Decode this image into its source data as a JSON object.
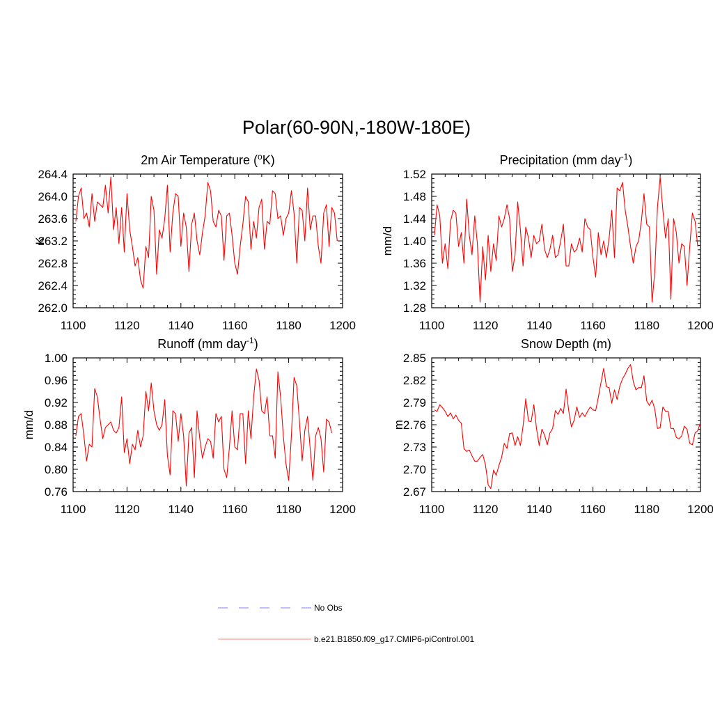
{
  "figure": {
    "title": "Polar(60-90N,-180W-180E)"
  },
  "legend": {
    "entries": [
      {
        "label": "No Obs",
        "color": "#a9a9ff",
        "style": "dashed"
      },
      {
        "label": "b.e21.B1850.f09_g17.CMIP6-piControl.001",
        "color": "#ff0000",
        "style": "solid"
      }
    ]
  },
  "chart_data": [
    {
      "type": "line",
      "title": "2m Air Temperature (oK)",
      "title_parts": {
        "pre": "2m Air Temperature (",
        "sup": "o",
        "post": "K)"
      },
      "ylabel": "K",
      "xlabel": "",
      "xlim": [
        1100,
        1200
      ],
      "ylim": [
        262.0,
        264.4
      ],
      "xticks": [
        1100,
        1120,
        1140,
        1160,
        1180,
        1200
      ],
      "yticks": [
        "262.0",
        "262.4",
        "262.8",
        "263.2",
        "263.6",
        "264.0",
        "264.4"
      ],
      "series": [
        {
          "name": "b.e21.B1850.f09_g17.CMIP6-piControl.001",
          "color": "#ff0000",
          "x_start": 1101,
          "values": [
            263.55,
            264.0,
            264.15,
            263.6,
            263.7,
            263.45,
            264.05,
            263.55,
            263.9,
            263.85,
            263.8,
            264.2,
            263.7,
            264.35,
            263.4,
            263.8,
            263.15,
            263.8,
            263.0,
            264.05,
            263.4,
            263.1,
            262.75,
            262.9,
            262.5,
            262.35,
            263.1,
            262.9,
            264.0,
            263.75,
            262.6,
            263.4,
            263.25,
            263.6,
            264.2,
            263.0,
            263.7,
            264.05,
            264.0,
            263.1,
            263.7,
            263.45,
            262.65,
            263.5,
            263.7,
            263.2,
            262.95,
            263.35,
            263.65,
            264.25,
            264.1,
            263.55,
            263.45,
            263.75,
            263.65,
            262.85,
            263.65,
            263.7,
            263.3,
            262.8,
            262.6,
            263.1,
            263.5,
            264.0,
            263.9,
            263.05,
            263.55,
            263.25,
            263.8,
            263.95,
            263.05,
            263.55,
            263.5,
            264.1,
            264.05,
            263.6,
            263.65,
            263.3,
            263.6,
            263.7,
            264.1,
            263.7,
            262.8,
            263.8,
            263.75,
            263.2,
            264.15,
            263.4,
            263.65,
            263.65,
            263.1,
            262.8,
            263.7,
            263.85,
            263.1,
            263.8,
            263.7,
            263.2
          ]
        }
      ]
    },
    {
      "type": "line",
      "title": "Precipitation (mm day-1)",
      "title_parts": {
        "pre": "Precipitation (mm day",
        "sup": "-1",
        "post": ")"
      },
      "ylabel": "mm/d",
      "xlabel": "",
      "xlim": [
        1100,
        1200
      ],
      "ylim": [
        1.28,
        1.52
      ],
      "xticks": [
        1100,
        1120,
        1140,
        1160,
        1180,
        1200
      ],
      "yticks": [
        "1.28",
        "1.32",
        "1.36",
        "1.40",
        "1.44",
        "1.48",
        "1.52"
      ],
      "series": [
        {
          "name": "b.e21.B1850.f09_g17.CMIP6-piControl.001",
          "color": "#ff0000",
          "x_start": 1101,
          "values": [
            1.41,
            1.465,
            1.445,
            1.36,
            1.395,
            1.35,
            1.435,
            1.455,
            1.45,
            1.39,
            1.415,
            1.36,
            1.475,
            1.41,
            1.375,
            1.445,
            1.395,
            1.29,
            1.39,
            1.33,
            1.41,
            1.345,
            1.395,
            1.365,
            1.445,
            1.425,
            1.44,
            1.465,
            1.44,
            1.345,
            1.375,
            1.47,
            1.42,
            1.355,
            1.425,
            1.405,
            1.37,
            1.41,
            1.395,
            1.4,
            1.43,
            1.385,
            1.37,
            1.385,
            1.41,
            1.37,
            1.375,
            1.4,
            1.43,
            1.355,
            1.355,
            1.395,
            1.38,
            1.385,
            1.405,
            1.38,
            1.44,
            1.425,
            1.42,
            1.37,
            1.335,
            1.415,
            1.375,
            1.4,
            1.37,
            1.405,
            1.455,
            1.37,
            1.495,
            1.49,
            1.505,
            1.455,
            1.425,
            1.39,
            1.36,
            1.39,
            1.4,
            1.435,
            1.485,
            1.43,
            1.425,
            1.29,
            1.345,
            1.46,
            1.515,
            1.455,
            1.405,
            1.44,
            1.295,
            1.44,
            1.415,
            1.36,
            1.395,
            1.39,
            1.32,
            1.39,
            1.45,
            1.435,
            1.39
          ]
        }
      ]
    },
    {
      "type": "line",
      "title": "Runoff (mm day-1)",
      "title_parts": {
        "pre": "Runoff (mm day",
        "sup": "-1",
        "post": ")"
      },
      "ylabel": "mm/d",
      "xlabel": "",
      "xlim": [
        1100,
        1200
      ],
      "ylim": [
        0.76,
        1.0
      ],
      "xticks": [
        1100,
        1120,
        1140,
        1160,
        1180,
        1200
      ],
      "yticks": [
        "0.76",
        "0.80",
        "0.84",
        "0.88",
        "0.92",
        "0.96",
        "1.00"
      ],
      "series": [
        {
          "name": "b.e21.B1850.f09_g17.CMIP6-piControl.001",
          "color": "#ff0000",
          "x_start": 1101,
          "values": [
            0.86,
            0.895,
            0.9,
            0.86,
            0.815,
            0.845,
            0.84,
            0.945,
            0.93,
            0.89,
            0.855,
            0.875,
            0.88,
            0.885,
            0.87,
            0.865,
            0.875,
            0.93,
            0.83,
            0.855,
            0.81,
            0.845,
            0.835,
            0.87,
            0.84,
            0.86,
            0.94,
            0.905,
            0.955,
            0.905,
            0.88,
            0.87,
            0.88,
            0.925,
            0.825,
            0.79,
            0.905,
            0.9,
            0.85,
            0.9,
            0.86,
            0.77,
            0.865,
            0.875,
            0.785,
            0.905,
            0.855,
            0.82,
            0.84,
            0.855,
            0.85,
            0.82,
            0.9,
            0.885,
            0.895,
            0.8,
            0.785,
            0.84,
            0.905,
            0.84,
            0.835,
            0.9,
            0.9,
            0.81,
            0.905,
            0.855,
            0.93,
            0.98,
            0.96,
            0.905,
            0.9,
            0.93,
            0.86,
            0.86,
            0.82,
            0.975,
            0.93,
            0.86,
            0.81,
            0.78,
            0.86,
            0.965,
            0.95,
            0.885,
            0.815,
            0.87,
            0.895,
            0.835,
            0.78,
            0.86,
            0.875,
            0.855,
            0.795,
            0.89,
            0.885,
            0.865
          ]
        }
      ]
    },
    {
      "type": "line",
      "title": "Snow Depth (m)",
      "ylabel": "m",
      "xlabel": "",
      "xlim": [
        1100,
        1200
      ],
      "ylim": [
        2.67,
        2.85
      ],
      "xticks": [
        1100,
        1120,
        1140,
        1160,
        1180,
        1200
      ],
      "yticks": [
        "2.67",
        "2.70",
        "2.73",
        "2.76",
        "2.79",
        "2.82",
        "2.85"
      ],
      "series": [
        {
          "name": "b.e21.B1850.f09_g17.CMIP6-piControl.001",
          "color": "#ff0000",
          "x_start": 1101,
          "values": [
            2.78,
            2.778,
            2.787,
            2.783,
            2.778,
            2.771,
            2.776,
            2.768,
            2.773,
            2.766,
            2.762,
            2.728,
            2.724,
            2.726,
            2.718,
            2.711,
            2.711,
            2.716,
            2.72,
            2.706,
            2.679,
            2.674,
            2.699,
            2.692,
            2.705,
            2.716,
            2.735,
            2.728,
            2.748,
            2.749,
            2.732,
            2.744,
            2.732,
            2.758,
            2.795,
            2.765,
            2.764,
            2.787,
            2.755,
            2.732,
            2.754,
            2.746,
            2.733,
            2.749,
            2.755,
            2.779,
            2.774,
            2.782,
            2.775,
            2.808,
            2.778,
            2.757,
            2.766,
            2.784,
            2.77,
            2.776,
            2.771,
            2.778,
            2.784,
            2.78,
            2.779,
            2.797,
            2.817,
            2.836,
            2.811,
            2.81,
            2.789,
            2.807,
            2.794,
            2.812,
            2.822,
            2.828,
            2.836,
            2.841,
            2.818,
            2.807,
            2.81,
            2.81,
            2.826,
            2.792,
            2.786,
            2.793,
            2.781,
            2.755,
            2.756,
            2.784,
            2.778,
            2.778,
            2.755,
            2.755,
            2.743,
            2.741,
            2.745,
            2.758,
            2.754,
            2.735,
            2.733,
            2.749,
            2.752,
            2.763
          ]
        }
      ]
    }
  ]
}
